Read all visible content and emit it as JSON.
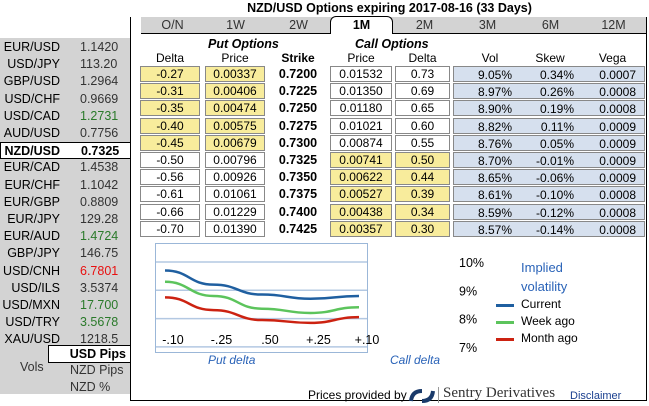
{
  "title": "NZD/USD Options expiring 2017-08-16 (33 Days)",
  "tabs": [
    {
      "label": "O/N"
    },
    {
      "label": "1W"
    },
    {
      "label": "2W"
    },
    {
      "label": "1M",
      "active": true
    },
    {
      "label": "2M"
    },
    {
      "label": "3M"
    },
    {
      "label": "6M"
    },
    {
      "label": "12M"
    }
  ],
  "pairs": [
    {
      "name": "EUR/USD",
      "value": "1.1420",
      "color": "#333333"
    },
    {
      "name": "USD/JPY",
      "value": "113.20",
      "color": "#333333"
    },
    {
      "name": "GBP/USD",
      "value": "1.2964",
      "color": "#333333"
    },
    {
      "name": "USD/CHF",
      "value": "0.9669",
      "color": "#333333"
    },
    {
      "name": "USD/CAD",
      "value": "1.2731",
      "color": "#2a7a2a"
    },
    {
      "name": "AUD/USD",
      "value": "0.7756",
      "color": "#333333"
    },
    {
      "name": "NZD/USD",
      "value": "0.7325",
      "color": "#000000",
      "selected": true
    },
    {
      "name": "EUR/CAD",
      "value": "1.4538",
      "color": "#333333"
    },
    {
      "name": "EUR/CHF",
      "value": "1.1042",
      "color": "#333333"
    },
    {
      "name": "EUR/GBP",
      "value": "0.8809",
      "color": "#333333"
    },
    {
      "name": "EUR/JPY",
      "value": "129.28",
      "color": "#333333"
    },
    {
      "name": "EUR/AUD",
      "value": "1.4724",
      "color": "#2a7a2a"
    },
    {
      "name": "GBP/JPY",
      "value": "146.75",
      "color": "#333333"
    },
    {
      "name": "USD/CNH",
      "value": "6.7801",
      "color": "#e81010"
    },
    {
      "name": "USD/ILS",
      "value": "3.5374",
      "color": "#333333"
    },
    {
      "name": "USD/MXN",
      "value": "17.700",
      "color": "#2a7a2a"
    },
    {
      "name": "USD/TRY",
      "value": "3.5678",
      "color": "#2a7a2a"
    },
    {
      "name": "XAU/USD",
      "value": "1218.5",
      "color": "#333333"
    }
  ],
  "units": {
    "vols_label": "Vols",
    "options": [
      {
        "label": "USD Pips",
        "selected": true
      },
      {
        "label": "NZD Pips"
      },
      {
        "label": "NZD %"
      }
    ]
  },
  "headers": {
    "put_section": "Put Options",
    "call_section": "Call Options",
    "put_delta": "Delta",
    "put_price": "Price",
    "strike": "Strike",
    "call_price": "Price",
    "call_delta": "Delta",
    "vol": "Vol",
    "skew": "Skew",
    "vega": "Vega"
  },
  "spot": 0.7325,
  "rows": [
    {
      "put_delta": "-0.27",
      "put_price": "0.00337",
      "strike": "0.7200",
      "call_price": "0.01532",
      "call_delta": "0.73",
      "vol": "9.05%",
      "skew": "0.34%",
      "vega": "0.0007"
    },
    {
      "put_delta": "-0.31",
      "put_price": "0.00406",
      "strike": "0.7225",
      "call_price": "0.01350",
      "call_delta": "0.69",
      "vol": "8.97%",
      "skew": "0.26%",
      "vega": "0.0008"
    },
    {
      "put_delta": "-0.35",
      "put_price": "0.00474",
      "strike": "0.7250",
      "call_price": "0.01180",
      "call_delta": "0.65",
      "vol": "8.90%",
      "skew": "0.19%",
      "vega": "0.0008"
    },
    {
      "put_delta": "-0.40",
      "put_price": "0.00575",
      "strike": "0.7275",
      "call_price": "0.01021",
      "call_delta": "0.60",
      "vol": "8.82%",
      "skew": "0.11%",
      "vega": "0.0009"
    },
    {
      "put_delta": "-0.45",
      "put_price": "0.00679",
      "strike": "0.7300",
      "call_price": "0.00874",
      "call_delta": "0.55",
      "vol": "8.76%",
      "skew": "0.05%",
      "vega": "0.0009"
    },
    {
      "put_delta": "-0.50",
      "put_price": "0.00796",
      "strike": "0.7325",
      "call_price": "0.00741",
      "call_delta": "0.50",
      "vol": "8.70%",
      "skew": "-0.01%",
      "vega": "0.0009"
    },
    {
      "put_delta": "-0.56",
      "put_price": "0.00926",
      "strike": "0.7350",
      "call_price": "0.00622",
      "call_delta": "0.44",
      "vol": "8.65%",
      "skew": "-0.06%",
      "vega": "0.0009"
    },
    {
      "put_delta": "-0.61",
      "put_price": "0.01061",
      "strike": "0.7375",
      "call_price": "0.00527",
      "call_delta": "0.39",
      "vol": "8.61%",
      "skew": "-0.10%",
      "vega": "0.0008"
    },
    {
      "put_delta": "-0.66",
      "put_price": "0.01229",
      "strike": "0.7400",
      "call_price": "0.00438",
      "call_delta": "0.34",
      "vol": "8.59%",
      "skew": "-0.12%",
      "vega": "0.0008"
    },
    {
      "put_delta": "-0.70",
      "put_price": "0.01390",
      "strike": "0.7425",
      "call_price": "0.00357",
      "call_delta": "0.30",
      "vol": "8.57%",
      "skew": "-0.14%",
      "vega": "0.0008"
    }
  ],
  "chart_data": {
    "type": "line",
    "categories": [
      "-.10",
      "-.25",
      ".50",
      "+.25",
      "+.10"
    ],
    "y_ticks": [
      "10%",
      "9%",
      "8%",
      "7%"
    ],
    "ylim": [
      7,
      10
    ],
    "grid": true,
    "legend_title": "Implied volatility",
    "legend_title_lines": [
      "Implied",
      "volatility"
    ],
    "legend_placement": "right",
    "xlabel_left": "Put delta",
    "xlabel_right": "Call delta",
    "series": [
      {
        "name": "Current",
        "color": "#1f5fa0",
        "values": [
          9.7,
          9.2,
          8.85,
          8.7,
          8.8
        ]
      },
      {
        "name": "Week ago",
        "color": "#5cc45c",
        "values": [
          9.3,
          8.8,
          8.35,
          8.2,
          8.4
        ]
      },
      {
        "name": "Month ago",
        "color": "#cc2211",
        "values": [
          8.75,
          8.3,
          7.95,
          7.85,
          8.05
        ]
      }
    ]
  },
  "footer": {
    "provided_by": "Prices provided by",
    "brand": "Sentry Derivatives",
    "disclaimer": "Disclaimer"
  }
}
